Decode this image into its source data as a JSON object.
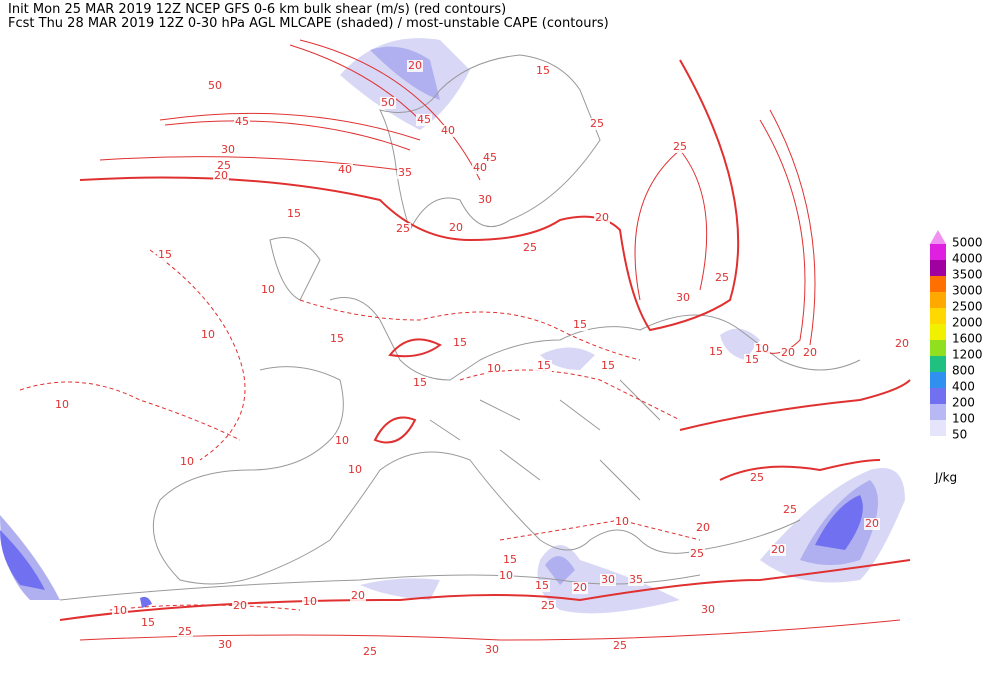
{
  "header": {
    "line1": "Init  Mon 25 MAR 2019 12Z  NCEP GFS 0-6 km bulk shear (m/s) (red contours)",
    "line2": "Fcst Thu 28 MAR 2019 12Z  0-30 hPa AGL MLCAPE (shaded) / most-unstable CAPE (contours)"
  },
  "legend": {
    "unit": "J/kg",
    "items": [
      {
        "label": 5000,
        "color": "#f090f0"
      },
      {
        "label": 4000,
        "color": "#e020e0"
      },
      {
        "label": 3500,
        "color": "#a000a0"
      },
      {
        "label": 3000,
        "color": "#ff7000"
      },
      {
        "label": 2500,
        "color": "#ffa800"
      },
      {
        "label": 2000,
        "color": "#ffd800"
      },
      {
        "label": 1600,
        "color": "#f0f000"
      },
      {
        "label": 1200,
        "color": "#90e020"
      },
      {
        "label": 800,
        "color": "#20c080"
      },
      {
        "label": 400,
        "color": "#3090f0"
      },
      {
        "label": 200,
        "color": "#7070f0"
      },
      {
        "label": 100,
        "color": "#b8b8f4"
      },
      {
        "label": 50,
        "color": "#e4e4fa"
      }
    ]
  },
  "contour_labels": [
    50,
    45,
    30,
    25,
    20,
    40,
    50,
    20,
    45,
    40,
    35,
    30,
    45,
    40,
    25,
    20,
    25,
    15,
    25,
    25,
    20,
    15,
    15,
    10,
    10,
    15,
    15,
    15,
    15,
    15,
    10,
    15,
    10,
    10,
    10,
    10,
    25,
    30,
    15,
    15,
    10,
    20,
    20,
    20,
    10,
    20,
    25,
    25,
    25,
    20,
    20,
    15,
    20,
    30,
    35,
    25,
    30,
    25,
    30,
    25,
    30,
    25,
    20,
    10,
    20,
    15,
    10,
    10,
    15
  ]
}
